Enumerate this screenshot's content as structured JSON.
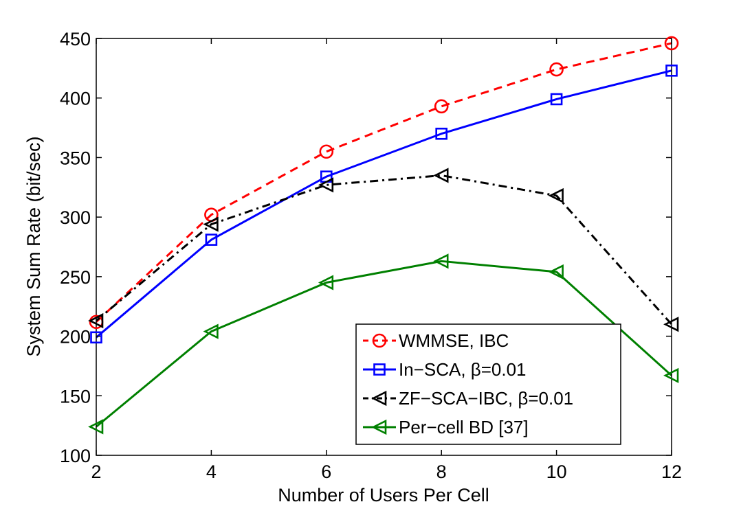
{
  "chart_data": {
    "type": "line",
    "title": "",
    "xlabel": "Number of Users Per Cell",
    "ylabel": "System Sum Rate (bit/sec)",
    "x": [
      2,
      4,
      6,
      8,
      10,
      12
    ],
    "xlim": [
      2,
      12
    ],
    "ylim": [
      100,
      450
    ],
    "xticks": [
      "2",
      "4",
      "6",
      "8",
      "10",
      "12"
    ],
    "yticks": [
      "100",
      "150",
      "200",
      "250",
      "300",
      "350",
      "400",
      "450"
    ],
    "grid": false,
    "legend_position": "lower-right",
    "series": [
      {
        "name": "WMMSE, IBC",
        "values": [
          212,
          302,
          355,
          393,
          424,
          446
        ],
        "color": "#ff0000",
        "marker": "circle",
        "line": "dashed"
      },
      {
        "name": "In−SCA, β=0.01",
        "values": [
          199,
          281,
          334,
          370,
          399,
          423
        ],
        "color": "#0000ff",
        "marker": "square",
        "line": "solid"
      },
      {
        "name": "ZF−SCA−IBC, β=0.01",
        "values": [
          213,
          294,
          327,
          335,
          318,
          210
        ],
        "color": "#000000",
        "marker": "triangle-left",
        "line": "dashdot"
      },
      {
        "name": "Per−cell BD [37]",
        "values": [
          124,
          204,
          245,
          263,
          254,
          167
        ],
        "color": "#008000",
        "marker": "triangle-left",
        "line": "solid"
      }
    ]
  }
}
